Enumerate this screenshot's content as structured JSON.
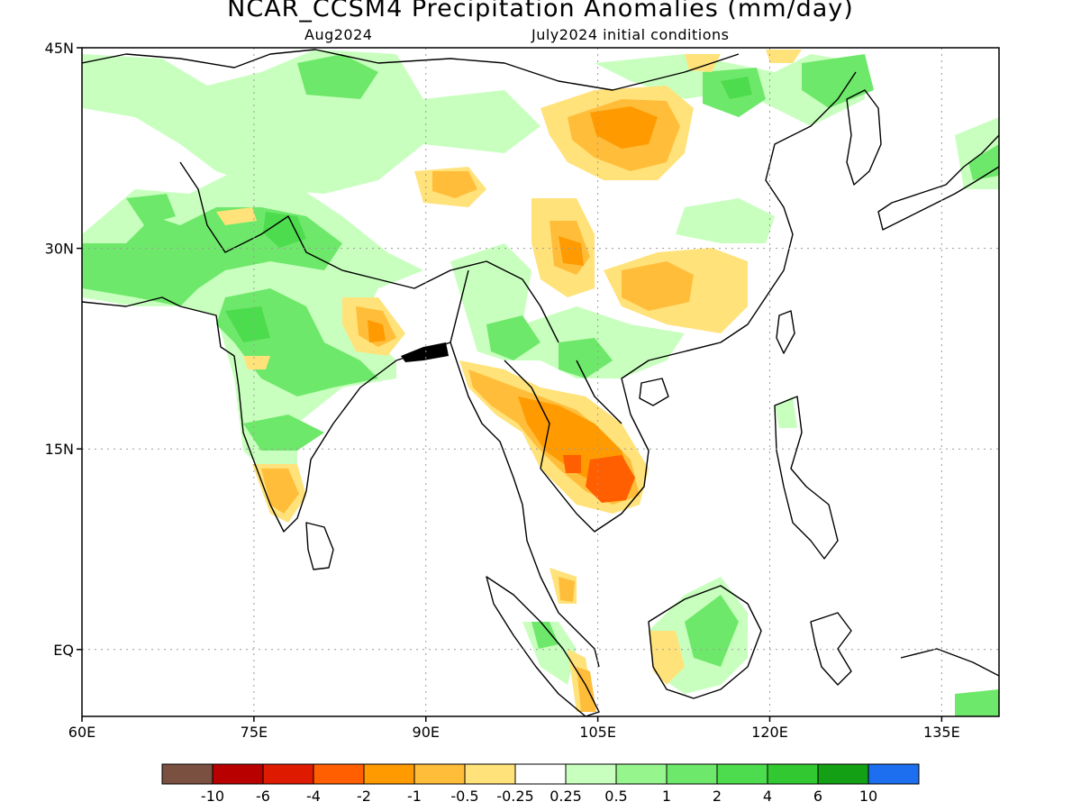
{
  "header": {
    "title": "NCAR_CCSM4 Precipitation Anomalies (mm/day)",
    "valid_month": "Aug2024",
    "init": "July2024 initial conditions"
  },
  "map": {
    "lon_range": [
      60,
      140
    ],
    "lat_range": [
      -5,
      45
    ],
    "lat_ticks": [
      {
        "value": 45,
        "label": "45N"
      },
      {
        "value": 30,
        "label": "30N"
      },
      {
        "value": 15,
        "label": "15N"
      },
      {
        "value": 0,
        "label": "EQ"
      }
    ],
    "lon_ticks": [
      {
        "value": 60,
        "label": "60E"
      },
      {
        "value": 75,
        "label": "75E"
      },
      {
        "value": 90,
        "label": "90E"
      },
      {
        "value": 105,
        "label": "105E"
      },
      {
        "value": 120,
        "label": "120E"
      },
      {
        "value": 135,
        "label": "135E"
      }
    ],
    "grid": true
  },
  "legend": {
    "colors": [
      "#7a5040",
      "#b80000",
      "#de1a00",
      "#ff5f00",
      "#ff9a00",
      "#ffbd3a",
      "#ffe27a",
      "#ffffff",
      "#c8ffbe",
      "#96f58c",
      "#6ee86a",
      "#4ddc4d",
      "#32c832",
      "#14a014",
      "#1e6ef0"
    ],
    "labels": [
      "-10",
      "-6",
      "-4",
      "-2",
      "-1",
      "-0.5",
      "-0.25",
      "0.25",
      "0.5",
      "1",
      "2",
      "4",
      "6",
      "10"
    ]
  },
  "palette": {
    "frame": "#000000",
    "grid": "#9a9a9a",
    "coast": "#000000"
  }
}
